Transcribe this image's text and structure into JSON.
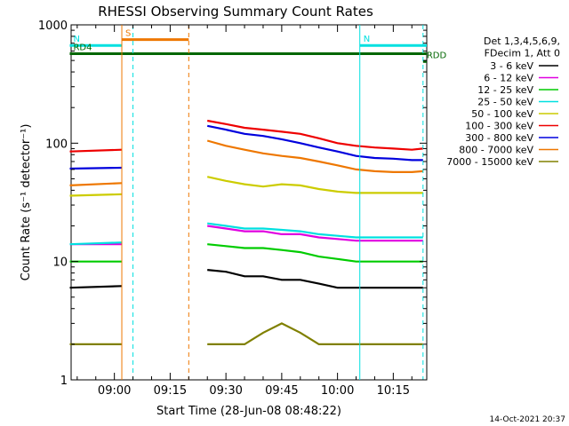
{
  "chart_data": {
    "type": "line",
    "title": "RHESSI Observing Summary Count Rates",
    "xlabel": "Start Time (28-Jun-08 08:48:22)",
    "ylabel": "Count Rate (s⁻¹ detector⁻¹)",
    "y_scale": "log",
    "ylim": [
      1,
      1000
    ],
    "xlim": [
      "08:48:22",
      "10:24:00"
    ],
    "x_ticks": [
      "09:00",
      "09:15",
      "09:30",
      "09:45",
      "10:00",
      "10:15"
    ],
    "y_ticks": [
      "1",
      "10",
      "100",
      "1000"
    ],
    "legend_header": [
      "Det 1,3,4,5,6,9,",
      "FDecim 1, Att 0"
    ],
    "legend_position": "right",
    "footer_date": "14-Oct-2021 20:37",
    "series": [
      {
        "name": "3 - 6 keV",
        "color": "#000000",
        "x": [
          "08:48",
          "09:02",
          "09:25",
          "09:30",
          "09:35",
          "09:40",
          "09:45",
          "09:50",
          "09:55",
          "10:00",
          "10:05",
          "10:10",
          "10:15",
          "10:20",
          "10:23"
        ],
        "y": [
          6,
          6.2,
          8.5,
          8.2,
          7.5,
          7.5,
          7,
          7,
          6.5,
          6,
          6,
          6,
          6,
          6,
          6
        ]
      },
      {
        "name": "6 - 12 keV",
        "color": "#e000e0",
        "x": [
          "08:48",
          "09:02",
          "09:25",
          "09:30",
          "09:35",
          "09:40",
          "09:45",
          "09:50",
          "09:55",
          "10:00",
          "10:05",
          "10:10",
          "10:15",
          "10:20",
          "10:23"
        ],
        "y": [
          14,
          14,
          20,
          19,
          18,
          18,
          17,
          17,
          16,
          15.5,
          15,
          15,
          15,
          15,
          15
        ]
      },
      {
        "name": "12 - 25 keV",
        "color": "#00cc00",
        "x": [
          "08:48",
          "09:02",
          "09:25",
          "09:30",
          "09:35",
          "09:40",
          "09:45",
          "09:50",
          "09:55",
          "10:00",
          "10:05",
          "10:10",
          "10:15",
          "10:20",
          "10:23"
        ],
        "y": [
          10,
          10,
          14,
          13.5,
          13,
          13,
          12.5,
          12,
          11,
          10.5,
          10,
          10,
          10,
          10,
          10
        ]
      },
      {
        "name": "25 - 50 keV",
        "color": "#00e0e0",
        "x": [
          "08:48",
          "09:02",
          "09:25",
          "09:30",
          "09:35",
          "09:40",
          "09:45",
          "09:50",
          "09:55",
          "10:00",
          "10:05",
          "10:10",
          "10:15",
          "10:20",
          "10:23"
        ],
        "y": [
          14,
          14.5,
          21,
          20,
          19,
          19,
          18.5,
          18,
          17,
          16.5,
          16,
          16,
          16,
          16,
          16
        ]
      },
      {
        "name": "50 - 100 keV",
        "color": "#cccc00",
        "x": [
          "08:48",
          "09:02",
          "09:25",
          "09:30",
          "09:35",
          "09:40",
          "09:45",
          "09:50",
          "09:55",
          "10:00",
          "10:05",
          "10:10",
          "10:15",
          "10:20",
          "10:23"
        ],
        "y": [
          36,
          37,
          52,
          48,
          45,
          43,
          45,
          44,
          41,
          39,
          38,
          38,
          38,
          38,
          38
        ]
      },
      {
        "name": "100 - 300 keV",
        "color": "#ee0000",
        "x": [
          "08:48",
          "09:02",
          "09:25",
          "09:30",
          "09:35",
          "09:40",
          "09:45",
          "09:50",
          "09:55",
          "10:00",
          "10:05",
          "10:10",
          "10:15",
          "10:20",
          "10:23"
        ],
        "y": [
          85,
          88,
          155,
          145,
          135,
          130,
          125,
          120,
          110,
          100,
          95,
          92,
          90,
          88,
          90
        ]
      },
      {
        "name": "300 - 800 keV",
        "color": "#0000dd",
        "x": [
          "08:48",
          "09:02",
          "09:25",
          "09:30",
          "09:35",
          "09:40",
          "09:45",
          "09:50",
          "09:55",
          "10:00",
          "10:05",
          "10:10",
          "10:15",
          "10:20",
          "10:23"
        ],
        "y": [
          61,
          62,
          140,
          130,
          120,
          115,
          108,
          100,
          92,
          85,
          78,
          75,
          74,
          72,
          72
        ]
      },
      {
        "name": "800 - 7000 keV",
        "color": "#ee7700",
        "x": [
          "08:48",
          "09:02",
          "09:25",
          "09:30",
          "09:35",
          "09:40",
          "09:45",
          "09:50",
          "09:55",
          "10:00",
          "10:05",
          "10:10",
          "10:15",
          "10:20",
          "10:23"
        ],
        "y": [
          44,
          46,
          105,
          95,
          88,
          82,
          78,
          75,
          70,
          65,
          60,
          58,
          57,
          57,
          58
        ]
      },
      {
        "name": "7000 - 15000 keV",
        "color": "#808000",
        "x": [
          "08:48",
          "09:02",
          "09:25",
          "09:30",
          "09:35",
          "09:40",
          "09:45",
          "09:50",
          "09:55",
          "10:00",
          "10:05",
          "10:10",
          "10:15",
          "10:20",
          "10:23"
        ],
        "y": [
          2,
          2,
          2,
          2,
          2,
          2.5,
          3,
          2.5,
          2,
          2,
          2,
          2,
          2,
          2,
          2
        ]
      }
    ],
    "flags": [
      {
        "name": "S",
        "color": "#ee7700",
        "x_start": "09:02",
        "x_end": "09:20",
        "y": 750
      },
      {
        "name": "N",
        "color": "#00e0e0",
        "x_start": "08:48",
        "x_end": "09:02",
        "y": 670
      },
      {
        "name": "N",
        "color": "#00e0e0",
        "x_start": "10:06",
        "x_end": "10:24",
        "y": 670
      },
      {
        "name": "RD4",
        "color": "#006600",
        "x_start": "08:48",
        "x_end": "10:24",
        "y": 570
      },
      {
        "name": "RDD",
        "color": "#006600",
        "x_start": "10:23",
        "x_end": "10:24",
        "y": 490
      }
    ],
    "vertical_lines": [
      {
        "x": "09:02",
        "color": "#ee7700",
        "style": "solid"
      },
      {
        "x": "09:05",
        "color": "#00e0e0",
        "style": "dashed"
      },
      {
        "x": "09:20",
        "color": "#ee7700",
        "style": "dashed"
      },
      {
        "x": "10:06",
        "color": "#00e0e0",
        "style": "solid"
      },
      {
        "x": "10:23",
        "color": "#00e0e0",
        "style": "dashed"
      }
    ],
    "grid": false
  }
}
